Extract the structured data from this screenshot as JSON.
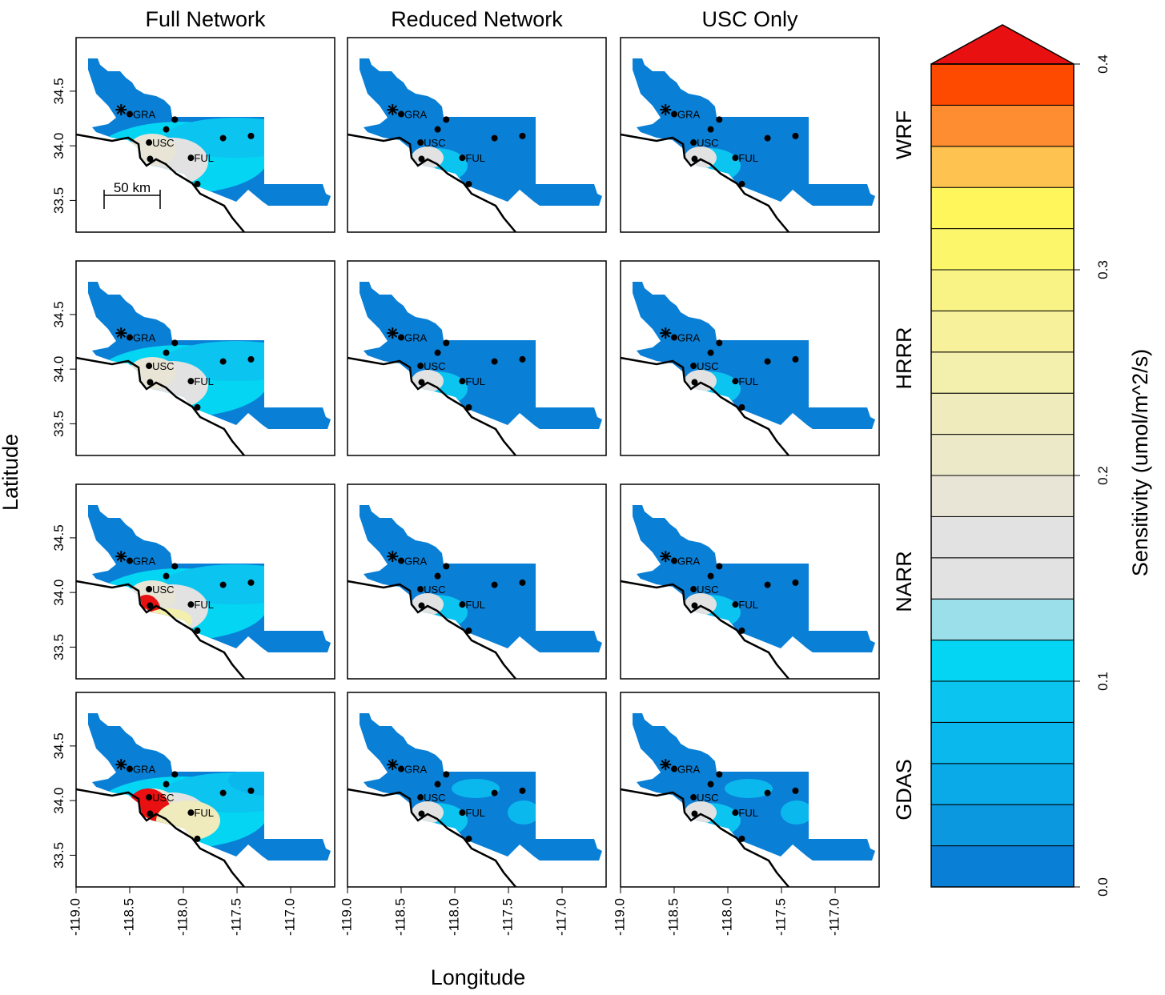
{
  "columns": [
    "Full Network",
    "Reduced Network",
    "USC Only"
  ],
  "rows": [
    "WRF",
    "HRRR",
    "NARR",
    "GDAS"
  ],
  "x_label": "Longitude",
  "y_label": "Latitude",
  "xlim": [
    -119.0,
    -116.59
  ],
  "ylim": [
    33.21,
    34.99
  ],
  "xticks": [
    {
      "value": -119.0,
      "label": "-119.0"
    },
    {
      "value": -118.5,
      "label": "-118.5"
    },
    {
      "value": -118.0,
      "label": "-118.0"
    },
    {
      "value": -117.5,
      "label": "-117.5"
    },
    {
      "value": -117.0,
      "label": "-117.0"
    }
  ],
  "yticks": [
    {
      "value": 33.5,
      "label": "33.5"
    },
    {
      "value": 34.0,
      "label": "34.0"
    },
    {
      "value": 34.5,
      "label": "34.5"
    }
  ],
  "tower": {
    "lon": -118.58,
    "lat": 34.33
  },
  "stations": [
    {
      "lon": -118.5,
      "lat": 34.29,
      "label": "GRA"
    },
    {
      "lon": -118.32,
      "lat": 34.03,
      "label": "USC"
    },
    {
      "lon": -117.93,
      "lat": 33.89,
      "label": "FUL"
    },
    {
      "lon": -118.16,
      "lat": 34.15
    },
    {
      "lon": -118.08,
      "lat": 34.24
    },
    {
      "lon": -118.31,
      "lat": 33.88
    },
    {
      "lon": -117.63,
      "lat": 34.07
    },
    {
      "lon": -117.37,
      "lat": 34.09
    },
    {
      "lon": -117.87,
      "lat": 33.65
    }
  ],
  "scale_bar": "50 km",
  "colorbar": {
    "label": "Sensitivity (umol/m^2/s)",
    "levels": [
      0,
      0.02,
      0.04,
      0.06,
      0.08,
      0.1,
      0.12,
      0.14,
      0.16,
      0.18,
      0.2,
      0.22,
      0.24,
      0.26,
      0.28,
      0.3,
      0.32,
      0.34,
      0.36,
      0.38,
      0.4
    ],
    "colors": [
      "#0a7fd6",
      "#0c98df",
      "#0aa9e8",
      "#0bb8ee",
      "#0bc4f0",
      "#03d5f2",
      "#9adfea",
      "#e2e2e2",
      "#e2e2e2",
      "#e8e5d6",
      "#ece9c9",
      "#efebbc",
      "#f3efac",
      "#f6f19a",
      "#f9f385",
      "#fcf66a",
      "#fef65a",
      "#fec250",
      "#fe8c30",
      "#fe4a00"
    ],
    "over_color": "#e81010",
    "ticks": [
      {
        "value": 0,
        "label": "0.0"
      },
      {
        "value": 0.1,
        "label": "0.1"
      },
      {
        "value": 0.2,
        "label": "0.2"
      },
      {
        "value": 0.3,
        "label": "0.3"
      },
      {
        "value": 0.4,
        "label": "0.4"
      }
    ]
  }
}
